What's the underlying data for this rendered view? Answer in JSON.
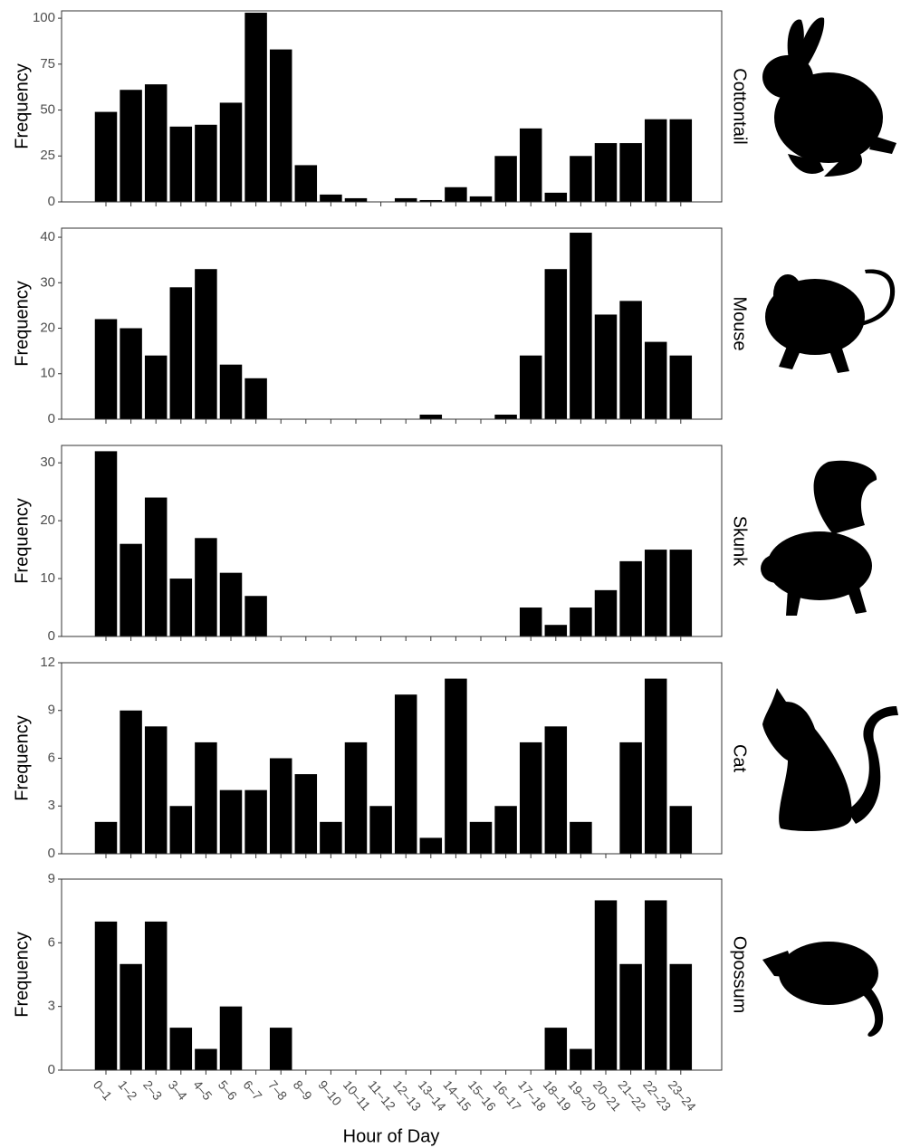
{
  "chart_data": {
    "type": "bar",
    "x_label": "Hour of Day",
    "color": "#000000",
    "categories": [
      "0–1",
      "1–2",
      "2–3",
      "3–4",
      "4–5",
      "5–6",
      "6–7",
      "7–8",
      "8–9",
      "9–10",
      "10–11",
      "11–12",
      "12–13",
      "13–14",
      "14–15",
      "15–16",
      "16–17",
      "17–18",
      "18–19",
      "19–20",
      "20–21",
      "21–22",
      "22–23",
      "23–24"
    ],
    "panels": [
      {
        "label": "Cottontail",
        "y_label": "Frequency",
        "ylim": [
          0,
          104
        ],
        "yticks": [
          0,
          25,
          50,
          75,
          100
        ],
        "values": [
          49,
          61,
          64,
          41,
          42,
          54,
          103,
          83,
          20,
          4,
          2,
          0,
          2,
          1,
          8,
          3,
          25,
          40,
          5,
          25,
          32,
          32,
          45,
          45
        ]
      },
      {
        "label": "Mouse",
        "y_label": "Frequency",
        "ylim": [
          0,
          42
        ],
        "yticks": [
          0,
          10,
          20,
          30,
          40
        ],
        "values": [
          22,
          20,
          14,
          29,
          33,
          12,
          9,
          0,
          0,
          0,
          0,
          0,
          0,
          1,
          0,
          0,
          1,
          14,
          33,
          41,
          23,
          26,
          17,
          14
        ]
      },
      {
        "label": "Skunk",
        "y_label": "Frequency",
        "ylim": [
          0,
          33
        ],
        "yticks": [
          0,
          10,
          20,
          30
        ],
        "values": [
          32,
          16,
          24,
          10,
          17,
          11,
          7,
          0,
          0,
          0,
          0,
          0,
          0,
          0,
          0,
          0,
          0,
          5,
          2,
          5,
          8,
          13,
          15,
          15
        ]
      },
      {
        "label": "Cat",
        "y_label": "Frequency",
        "ylim": [
          0,
          12
        ],
        "yticks": [
          0,
          3,
          6,
          9,
          12
        ],
        "values": [
          2,
          9,
          8,
          3,
          7,
          4,
          4,
          6,
          5,
          2,
          7,
          3,
          10,
          1,
          11,
          2,
          3,
          7,
          8,
          2,
          0,
          7,
          11,
          3
        ]
      },
      {
        "label": "Opossum",
        "y_label": "Frequency",
        "ylim": [
          0,
          9
        ],
        "yticks": [
          0,
          3,
          6,
          9
        ],
        "values": [
          7,
          5,
          7,
          2,
          1,
          3,
          0,
          2,
          0,
          0,
          0,
          0,
          0,
          0,
          0,
          0,
          0,
          0,
          2,
          1,
          8,
          5,
          8,
          5
        ]
      }
    ]
  }
}
